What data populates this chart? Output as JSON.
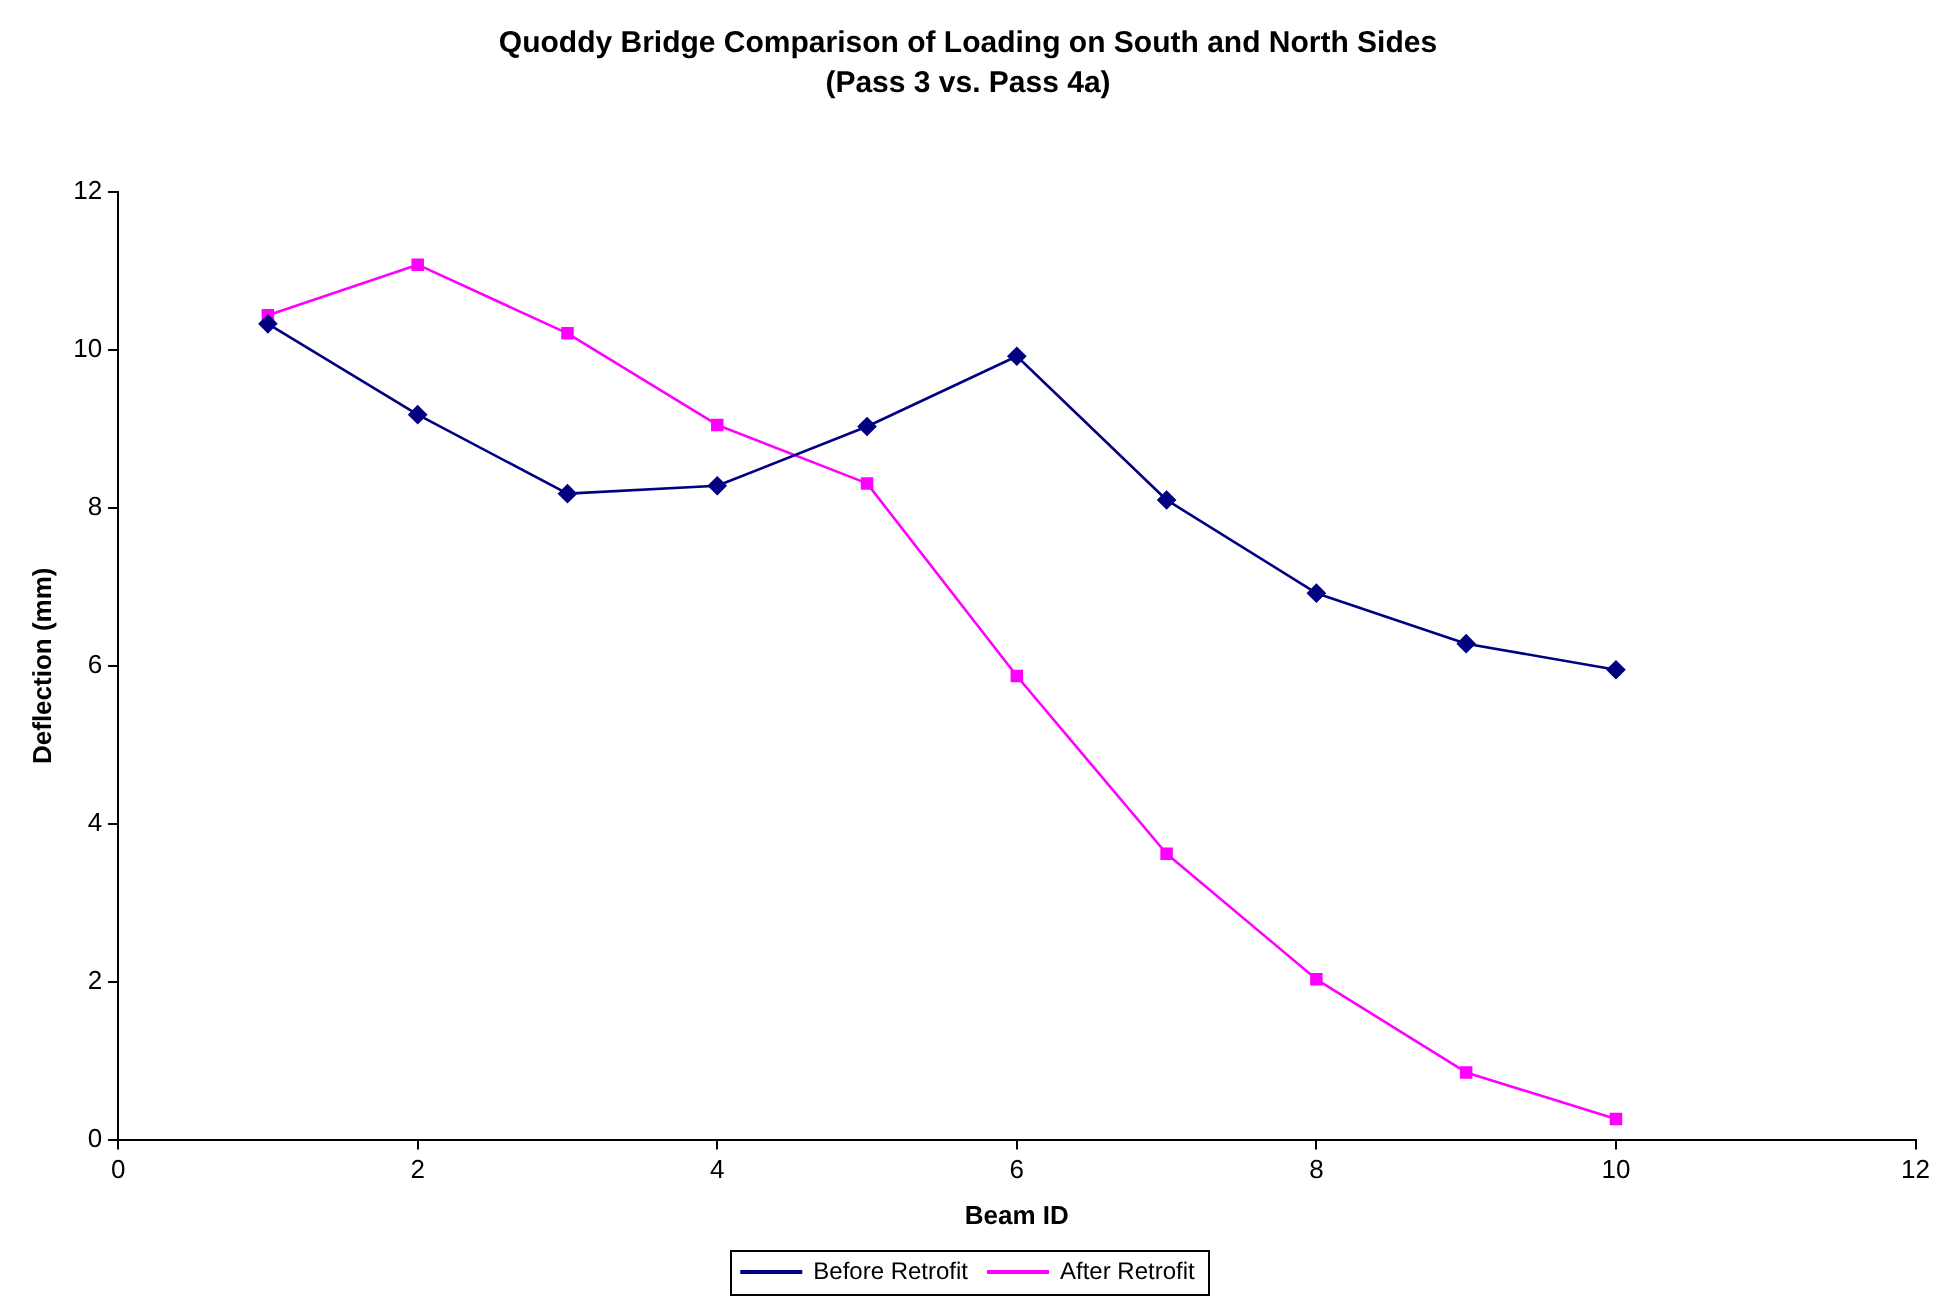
{
  "chart_data": {
    "type": "line",
    "title": "Quoddy Bridge Comparison of Loading on South and North Sides",
    "subtitle": "(Pass 3 vs. Pass 4a)",
    "xlabel": "Beam ID",
    "ylabel": "Deflection (mm)",
    "x": [
      1,
      2,
      3,
      4,
      5,
      6,
      7,
      8,
      9,
      10
    ],
    "series": [
      {
        "name": "Before Retrofit",
        "color": "#000080",
        "marker": "diamond",
        "values": [
          10.33,
          9.18,
          8.18,
          8.28,
          9.03,
          9.92,
          8.1,
          6.92,
          6.28,
          5.95
        ]
      },
      {
        "name": "After Retrofit",
        "color": "#ff00ff",
        "marker": "square",
        "values": [
          10.44,
          11.08,
          10.21,
          9.05,
          8.31,
          5.87,
          3.62,
          2.03,
          0.85,
          0.26
        ]
      }
    ],
    "xlim": [
      0,
      12
    ],
    "xticks": [
      0,
      2,
      4,
      6,
      8,
      10,
      12
    ],
    "ylim": [
      0,
      12
    ],
    "yticks": [
      0,
      2,
      4,
      6,
      8,
      10,
      12
    ],
    "grid": false,
    "legend": "bottom",
    "line_style": "solid"
  }
}
